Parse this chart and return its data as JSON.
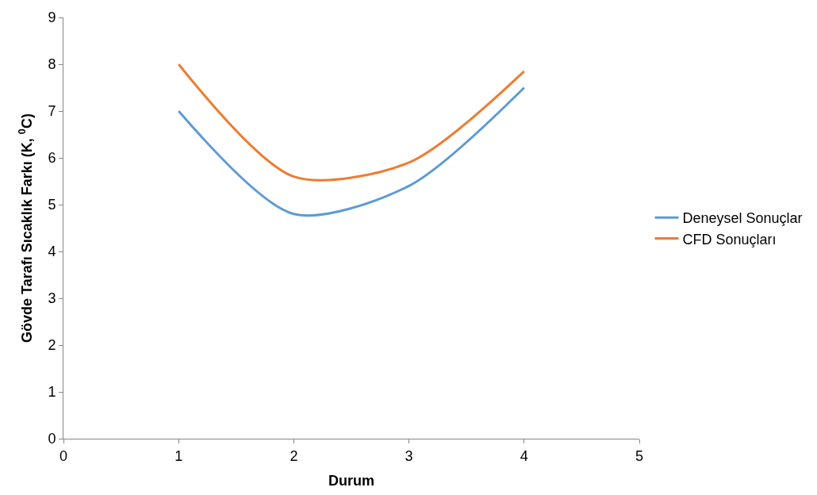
{
  "chart_data": {
    "type": "line",
    "xlabel": "Durum",
    "ylabel": "Gövde Tarafı Sıcaklık Farkı (K, $^{0}$C)",
    "x": [
      1,
      2,
      3,
      4
    ],
    "series": [
      {
        "name": "Deneysel Sonuçlar",
        "color": "#5b9bd5",
        "values": [
          7.0,
          4.8,
          5.4,
          7.5
        ]
      },
      {
        "name": "CFD Sonuçları",
        "color": "#ed7d31",
        "values": [
          8.0,
          5.6,
          5.9,
          7.85
        ]
      }
    ],
    "xlim": [
      0,
      5
    ],
    "xticks": [
      0,
      1,
      2,
      3,
      4,
      5
    ],
    "ylim": [
      0,
      9
    ],
    "yticks": [
      0,
      1,
      2,
      3,
      4,
      5,
      6,
      7,
      8,
      9
    ],
    "legend": "right",
    "marker": "none",
    "line_style": "solid"
  }
}
